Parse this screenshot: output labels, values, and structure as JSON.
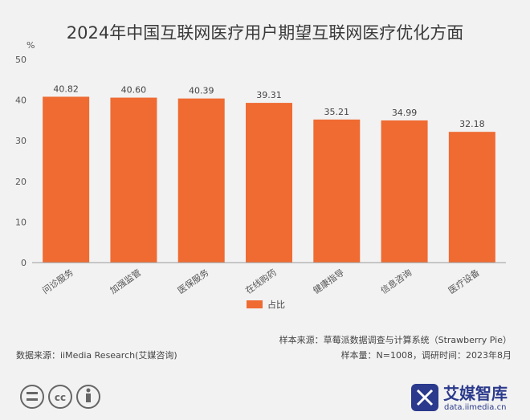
{
  "chart_data": {
    "type": "bar",
    "title": "2024年中国互联网医疗用户期望互联网医疗优化方面",
    "ylabel": "%",
    "ylim": [
      0,
      50
    ],
    "yticks": [
      0,
      10,
      20,
      30,
      40,
      50
    ],
    "categories": [
      "问诊服务",
      "加强监管",
      "医保服务",
      "在线购药",
      "健康指导",
      "信息咨询",
      "医疗设备"
    ],
    "series": [
      {
        "name": "占比",
        "values": [
          40.82,
          40.6,
          40.39,
          39.31,
          35.21,
          34.99,
          32.18
        ]
      }
    ],
    "data_labels": [
      "40.82",
      "40.60",
      "40.39",
      "39.31",
      "35.21",
      "34.99",
      "32.18"
    ],
    "legend_position": "bottom-center",
    "grid": false
  },
  "colors": {
    "bar": "#ef6b32",
    "axis": "#999999"
  },
  "footer": {
    "sample_source": "样本来源：草莓派数据调查与计算系统（Strawberry Pie）",
    "data_source": "数据来源：iiMedia Research(艾媒咨询)",
    "sample_info": "样本量：N=1008，调研时间：2023年8月"
  },
  "branding": {
    "logo_text": "艾媒智库",
    "url": "data.iimedia.cn",
    "license_icons": [
      "cc-equal-icon",
      "cc-icon",
      "cc-by-icon"
    ]
  }
}
